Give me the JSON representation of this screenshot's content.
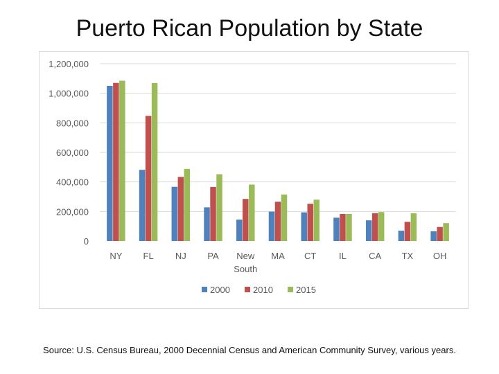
{
  "title": "Puerto Rican Population by State",
  "source": "Source: U.S. Census Bureau, 2000 Decennial Census and American Community Survey, various years.",
  "chart_data": {
    "type": "bar",
    "title": "Puerto Rican Population by State",
    "xlabel": "",
    "ylabel": "",
    "ylim": [
      0,
      1200000
    ],
    "yticks": [
      0,
      200000,
      400000,
      600000,
      800000,
      1000000,
      1200000
    ],
    "ytick_labels": [
      "0",
      "200,000",
      "400,000",
      "600,000",
      "800,000",
      "1,000,000",
      "1,200,000"
    ],
    "grid": true,
    "legend_position": "bottom",
    "categories": [
      "NY",
      "FL",
      "NJ",
      "PA",
      "New South",
      "MA",
      "CT",
      "IL",
      "CA",
      "TX",
      "OH"
    ],
    "category_lines": [
      [
        "NY"
      ],
      [
        "FL"
      ],
      [
        "NJ"
      ],
      [
        "PA"
      ],
      [
        "New",
        "South"
      ],
      [
        "MA"
      ],
      [
        "CT"
      ],
      [
        "IL"
      ],
      [
        "CA"
      ],
      [
        "TX"
      ],
      [
        "OH"
      ]
    ],
    "series": [
      {
        "name": "2000",
        "color": "#4f81bd",
        "values": [
          1050000,
          482000,
          367000,
          228000,
          145000,
          199000,
          194000,
          158000,
          140000,
          70000,
          66000
        ]
      },
      {
        "name": "2010",
        "color": "#c0504d",
        "values": [
          1070000,
          847000,
          434000,
          366000,
          285000,
          266000,
          252000,
          183000,
          189000,
          130000,
          95000
        ]
      },
      {
        "name": "2015",
        "color": "#9bbb59",
        "values": [
          1085000,
          1069000,
          488000,
          452000,
          382000,
          315000,
          280000,
          183000,
          196000,
          188000,
          121000
        ]
      }
    ]
  }
}
